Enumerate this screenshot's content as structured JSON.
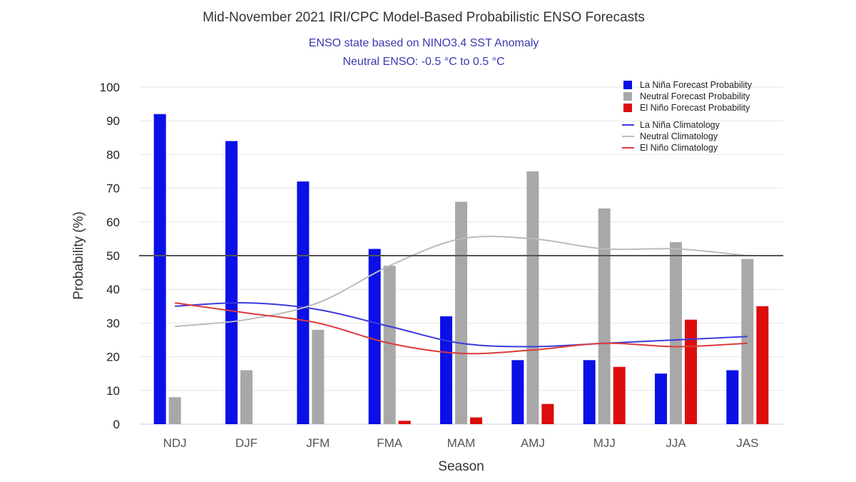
{
  "title": "Mid-November 2021 IRI/CPC Model-Based Probabilistic ENSO Forecasts",
  "subtitle_line1": "ENSO state based on NINO3.4 SST Anomaly",
  "subtitle_line2": "Neutral ENSO: -0.5 °C to 0.5 °C",
  "colors": {
    "la_nina": "#0a10e6",
    "neutral": "#a8a8a8",
    "el_nino": "#dd0d0d",
    "la_nina_clim": "#3a3ae0",
    "neutral_clim": "#bbbbbb",
    "el_nino_clim": "#dd3a3a",
    "reference_line": "#555555",
    "grid": "#e6e6e6"
  },
  "chart_data": {
    "type": "bar",
    "xlabel": "Season",
    "ylabel": "Probability (%)",
    "ylim": [
      0,
      100
    ],
    "yticks": [
      0,
      10,
      20,
      30,
      40,
      50,
      60,
      70,
      80,
      90,
      100
    ],
    "grid": true,
    "reference_line": 50,
    "legend_position": "top-right",
    "categories": [
      "NDJ",
      "DJF",
      "JFM",
      "FMA",
      "MAM",
      "AMJ",
      "MJJ",
      "JJA",
      "JAS"
    ],
    "series": [
      {
        "name": "La Niña Forecast Probability",
        "type": "bar",
        "color_key": "la_nina",
        "values": [
          92,
          84,
          72,
          52,
          32,
          19,
          19,
          15,
          16
        ]
      },
      {
        "name": "Neutral Forecast Probability",
        "type": "bar",
        "color_key": "neutral",
        "values": [
          8,
          16,
          28,
          47,
          66,
          75,
          64,
          54,
          49
        ]
      },
      {
        "name": "El Niño Forecast Probability",
        "type": "bar",
        "color_key": "el_nino",
        "values": [
          0,
          0,
          0,
          1,
          2,
          6,
          17,
          31,
          35
        ]
      },
      {
        "name": "La Niña Climatology",
        "type": "line",
        "color_key": "la_nina_clim",
        "values": [
          35,
          36,
          34,
          29,
          24,
          23,
          24,
          25,
          26
        ]
      },
      {
        "name": "Neutral Climatology",
        "type": "line",
        "color_key": "neutral_clim",
        "values": [
          29,
          31,
          36,
          47,
          55,
          55,
          52,
          52,
          50
        ]
      },
      {
        "name": "El Niño Climatology",
        "type": "line",
        "color_key": "el_nino_clim",
        "values": [
          36,
          33,
          30,
          24,
          21,
          22,
          24,
          23,
          24
        ]
      }
    ]
  }
}
